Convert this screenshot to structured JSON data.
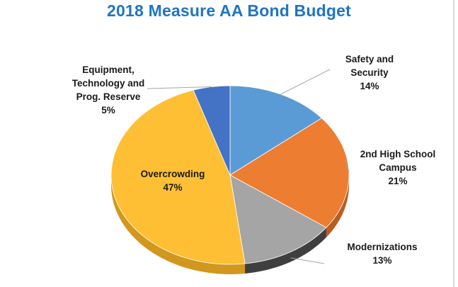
{
  "chart_data": {
    "type": "pie",
    "title": "2018 Measure AA Bond Budget",
    "slices": [
      {
        "label_lines": [
          "Safety and",
          "Security",
          "14%"
        ],
        "value": 14,
        "color": "#5b9bd5",
        "side": "#3f7ab2"
      },
      {
        "label_lines": [
          "2nd High School",
          "Campus",
          "21%"
        ],
        "value": 21,
        "color": "#ed7d31",
        "side": "#b85e22"
      },
      {
        "label_lines": [
          "Modernizations",
          "13%"
        ],
        "value": 13,
        "color": "#a5a5a5",
        "side": "#3f3f3f"
      },
      {
        "label_lines": [
          "Overcrowding",
          "47%"
        ],
        "value": 47,
        "color": "#ffbf35",
        "side": "#d2971e"
      },
      {
        "label_lines": [
          "Equipment,",
          "Technology and",
          "Prog. Reserve",
          "5%"
        ],
        "value": 5,
        "color": "#4472c4",
        "side": "#2f5597"
      }
    ],
    "start": "12 o'clock",
    "direction": "clockwise",
    "legend": "none",
    "style": "3d-tilted",
    "title_color": "#1f74c4"
  }
}
